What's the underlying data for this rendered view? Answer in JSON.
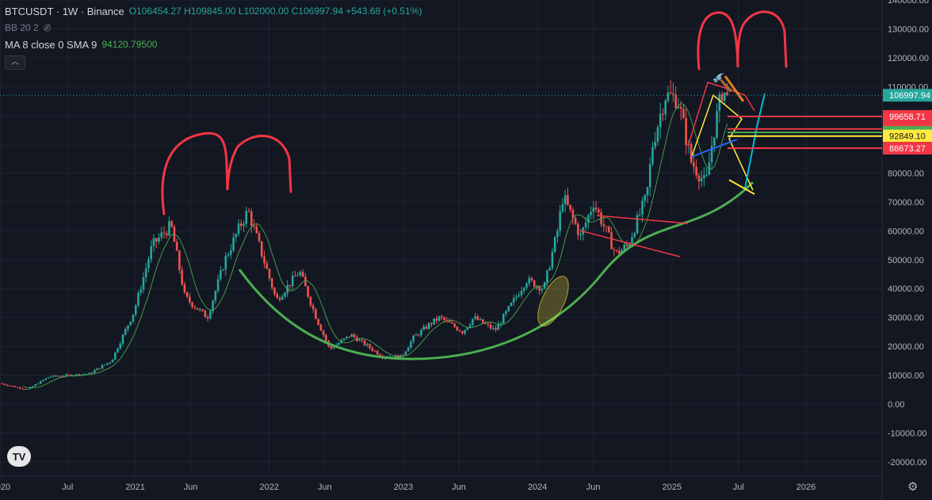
{
  "header": {
    "symbol": "BTCUSDT · 1W · Binance",
    "open": "O106454.27",
    "high": "H109845.00",
    "low": "L102000.00",
    "close": "C106997.94",
    "change": "+543.68 (+0.51%)"
  },
  "indicators": {
    "bb_label": "BB 20 2",
    "ma_label": "MA 8 close 0 SMA 9",
    "ma_value": "94120.79500"
  },
  "colors": {
    "background": "#131722",
    "up": "#26a69a",
    "down": "#ef5350",
    "grid": "#1f2330",
    "axis_text": "#b2b5be",
    "arc": "#4caf50",
    "ma": "#4caf50",
    "drawing_red": "#f23645",
    "drawing_yellow": "#ffeb3b",
    "drawing_blue": "#2962ff",
    "drawing_cyan": "#00bcd4"
  },
  "chart_data": {
    "type": "candlestick",
    "y_axis": {
      "range": [
        -25000,
        140000
      ],
      "ticks": [
        "140000.00",
        "130000.00",
        "120000.00",
        "110000.00",
        "100000.00",
        "90000.00",
        "80000.00",
        "70000.00",
        "60000.00",
        "50000.00",
        "40000.00",
        "30000.00",
        "20000.00",
        "10000.00",
        "0.00",
        "-10000.00",
        "-20000.00"
      ]
    },
    "x_axis": {
      "range": [
        "2019-12-30",
        "2026-07-27"
      ],
      "labels": [
        {
          "date": "2020-01-01",
          "text": "2020"
        },
        {
          "date": "2020-07-01",
          "text": "Jul"
        },
        {
          "date": "2021-01-01",
          "text": "2021"
        },
        {
          "date": "2021-06-01",
          "text": "Jun"
        },
        {
          "date": "2022-01-01",
          "text": "2022"
        },
        {
          "date": "2022-06-01",
          "text": "Jun"
        },
        {
          "date": "2023-01-01",
          "text": "2023"
        },
        {
          "date": "2023-06-01",
          "text": "Jun"
        },
        {
          "date": "2024-01-01",
          "text": "2024"
        },
        {
          "date": "2024-06-01",
          "text": "Jun"
        },
        {
          "date": "2025-01-01",
          "text": "2025"
        },
        {
          "date": "2025-07-01",
          "text": "Jul"
        },
        {
          "date": "2026-01-01",
          "text": "2026"
        }
      ]
    },
    "price_path": [
      [
        "2020-01-01",
        7200
      ],
      [
        "2020-03-16",
        5000
      ],
      [
        "2020-05-15",
        9500
      ],
      [
        "2020-09-01",
        10500
      ],
      [
        "2020-11-01",
        15000
      ],
      [
        "2021-01-01",
        32000
      ],
      [
        "2021-02-20",
        55000
      ],
      [
        "2021-04-12",
        62000
      ],
      [
        "2021-05-20",
        37000
      ],
      [
        "2021-07-20",
        30000
      ],
      [
        "2021-09-06",
        50000
      ],
      [
        "2021-10-18",
        62000
      ],
      [
        "2021-11-08",
        67000
      ],
      [
        "2022-01-24",
        36000
      ],
      [
        "2022-03-28",
        46000
      ],
      [
        "2022-05-12",
        30000
      ],
      [
        "2022-06-18",
        19000
      ],
      [
        "2022-08-15",
        24000
      ],
      [
        "2022-11-09",
        16500
      ],
      [
        "2022-12-31",
        16500
      ],
      [
        "2023-02-01",
        23000
      ],
      [
        "2023-03-20",
        28000
      ],
      [
        "2023-04-14",
        30000
      ],
      [
        "2023-06-15",
        25000
      ],
      [
        "2023-07-15",
        30000
      ],
      [
        "2023-09-11",
        25500
      ],
      [
        "2023-10-23",
        34000
      ],
      [
        "2023-12-05",
        43000
      ],
      [
        "2024-01-22",
        40000
      ],
      [
        "2024-02-28",
        60000
      ],
      [
        "2024-03-14",
        72000
      ],
      [
        "2024-05-01",
        58000
      ],
      [
        "2024-06-05",
        70000
      ],
      [
        "2024-08-05",
        52000
      ],
      [
        "2024-09-06",
        55000
      ],
      [
        "2024-10-28",
        72000
      ],
      [
        "2024-11-13",
        90000
      ],
      [
        "2024-12-17",
        107000
      ],
      [
        "2025-01-20",
        106000
      ],
      [
        "2025-02-26",
        84000
      ],
      [
        "2025-04-07",
        76000
      ],
      [
        "2025-04-28",
        94000
      ],
      [
        "2025-05-22",
        109000
      ],
      [
        "2025-06-02",
        106998
      ]
    ],
    "price_levels": [
      {
        "value": 106997.94,
        "label": "106997.94",
        "color": "#26a69a",
        "text_color": "#ffffff"
      },
      {
        "value": 99658.71,
        "label": "99658.71",
        "color": "#f23645",
        "text_color": "#ffffff"
      },
      {
        "value": 95303.1,
        "label": "95303.10",
        "color": "#f23645",
        "text_color": "#ffffff"
      },
      {
        "value": 94120.795,
        "label": "94120.7950",
        "color": "#4caf50",
        "text_color": "#ffffff"
      },
      {
        "value": 92849.1,
        "label": "92849.10",
        "color": "#ffeb3b",
        "text_color": "#131722"
      },
      {
        "value": 88673.27,
        "label": "88673.27",
        "color": "#f23645",
        "text_color": "#ffffff"
      }
    ],
    "annotations": {
      "emoji": "🔨"
    }
  }
}
